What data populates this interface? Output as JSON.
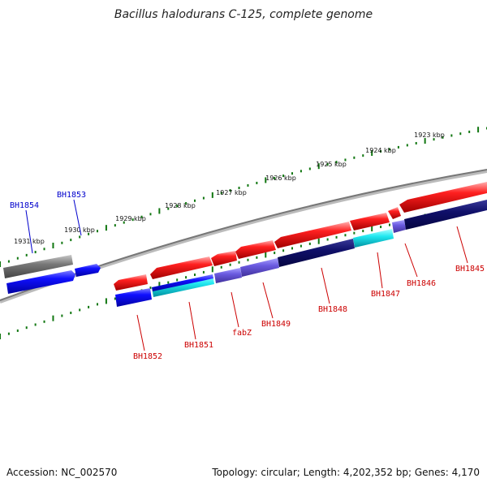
{
  "title": "Bacillus halodurans C-125, complete genome",
  "footer": {
    "accession": "Accession: NC_002570",
    "summary": "Topology: circular; Length: 4,202,352 bp; Genes: 4,170"
  },
  "colors": {
    "forward_gene": "#ff1a1a",
    "reverse_gene": "#0000ee",
    "backbone": "#888888",
    "tick": "#117711",
    "label_red": "#cc0000",
    "label_blue": "#0000cc"
  },
  "ruler_labels": [
    "1931 kbp",
    "1930 kbp",
    "1929 kbp",
    "1928 kbp",
    "1927 kbp",
    "1926 kbp",
    "1925 kbp",
    "1924 kbp",
    "1923 kbp"
  ],
  "gene_labels": [
    {
      "text": "BH1854",
      "color": "blue"
    },
    {
      "text": "BH1853",
      "color": "blue"
    },
    {
      "text": "BH1852",
      "color": "red"
    },
    {
      "text": "BH1851",
      "color": "red"
    },
    {
      "text": "fabZ",
      "color": "red"
    },
    {
      "text": "BH1849",
      "color": "red"
    },
    {
      "text": "BH1848",
      "color": "red"
    },
    {
      "text": "BH1847",
      "color": "red"
    },
    {
      "text": "BH1846",
      "color": "red"
    },
    {
      "text": "BH1845",
      "color": "red"
    }
  ]
}
